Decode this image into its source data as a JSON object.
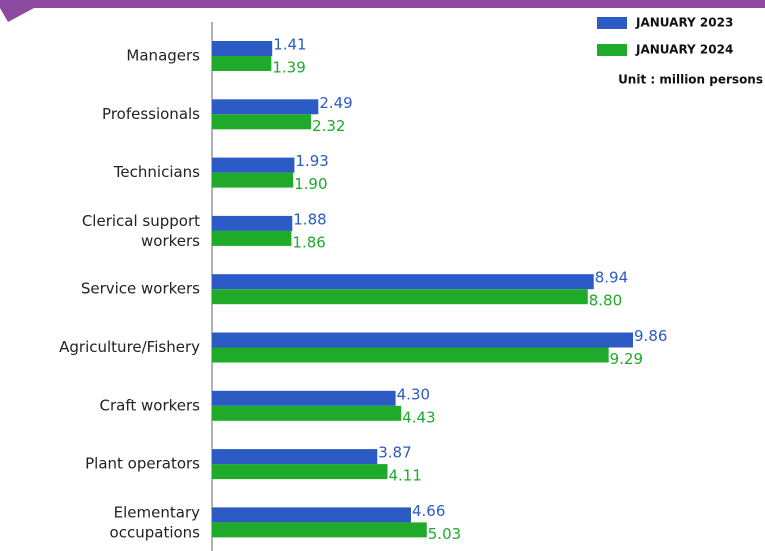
{
  "chart_data": {
    "type": "bar",
    "orientation": "horizontal",
    "categories": [
      "Managers",
      "Professionals",
      "Technicians",
      "Clerical support\nworkers",
      "Service workers",
      "Agriculture/Fishery",
      "Craft workers",
      "Plant operators",
      "Elementary\noccupations"
    ],
    "series": [
      {
        "name": "JANUARY 2023",
        "color": "#2c5bc6",
        "values": [
          1.41,
          2.49,
          1.93,
          1.88,
          8.94,
          9.86,
          4.3,
          3.87,
          4.66
        ],
        "value_labels": [
          "1.41",
          "2.49",
          "1.93",
          "1.88",
          "8.94",
          "9.86",
          "4.30",
          "3.87",
          "4.66"
        ]
      },
      {
        "name": "JANUARY 2024",
        "color": "#1faa2a",
        "values": [
          1.39,
          2.32,
          1.9,
          1.86,
          8.8,
          9.29,
          4.43,
          4.11,
          5.03
        ],
        "value_labels": [
          "1.39",
          "2.32",
          "1.90",
          "1.86",
          "8.80",
          "9.29",
          "4.43",
          "4.11",
          "5.03"
        ]
      }
    ],
    "unit_note": "Unit : million persons",
    "legend": "top-right"
  }
}
